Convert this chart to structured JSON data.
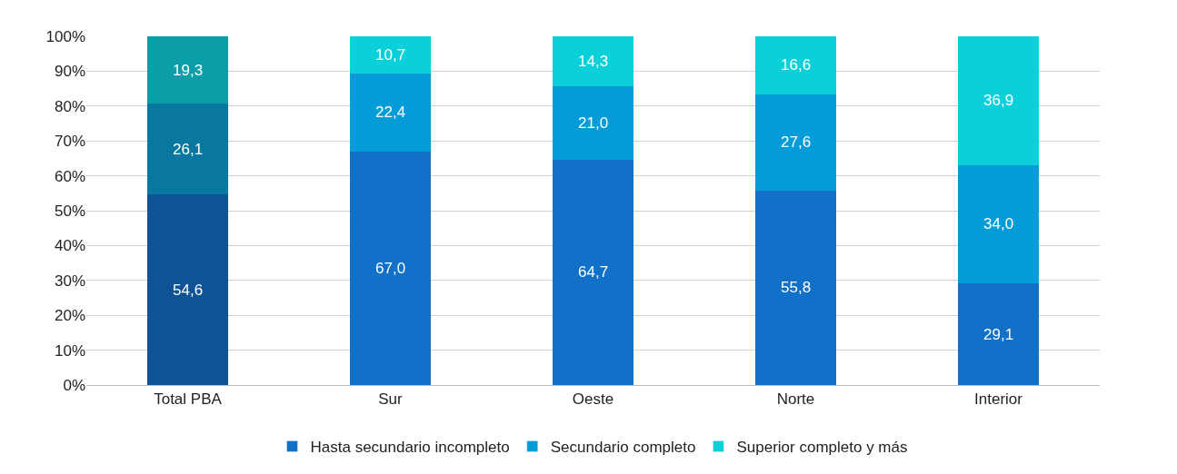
{
  "chart_data": {
    "type": "bar",
    "stacked": true,
    "categories": [
      "Total PBA",
      "Sur",
      "Oeste",
      "Norte",
      "Interior"
    ],
    "series": [
      {
        "name": "Hasta secundario incompleto",
        "color": "#1170c8",
        "colors": [
          "#0e5394",
          "#1170c8",
          "#1170c8",
          "#1170c8",
          "#1170c8"
        ],
        "values": [
          54.6,
          67.0,
          64.7,
          55.8,
          29.1
        ],
        "value_labels": [
          "54,6",
          "67,0",
          "64,7",
          "55,8",
          "29,1"
        ]
      },
      {
        "name": "Secundario completo",
        "color": "#049cd8",
        "colors": [
          "#0878a0",
          "#049cd8",
          "#049cd8",
          "#049cd8",
          "#049cd8"
        ],
        "values": [
          26.1,
          22.4,
          21.0,
          27.6,
          34.0
        ],
        "value_labels": [
          "26,1",
          "22,4",
          "21,0",
          "27,6",
          "34,0"
        ]
      },
      {
        "name": "Superior completo y más",
        "color": "#0bd0da",
        "colors": [
          "#0c9ea8",
          "#0bd0da",
          "#0bd0da",
          "#0bd0da",
          "#0bd0da"
        ],
        "values": [
          19.3,
          10.7,
          14.3,
          16.6,
          36.9
        ],
        "value_labels": [
          "19,3",
          "10,7",
          "14,3",
          "16,6",
          "36,9"
        ]
      }
    ],
    "ylim": [
      0,
      100
    ],
    "yticks": [
      {
        "value": 0,
        "label": "0%"
      },
      {
        "value": 10,
        "label": "10%"
      },
      {
        "value": 20,
        "label": "20%"
      },
      {
        "value": 30,
        "label": "30%"
      },
      {
        "value": 40,
        "label": "40%"
      },
      {
        "value": 50,
        "label": "50%"
      },
      {
        "value": 60,
        "label": "60%"
      },
      {
        "value": 70,
        "label": "70%"
      },
      {
        "value": 80,
        "label": "80%"
      },
      {
        "value": 90,
        "label": "90%"
      },
      {
        "value": 100,
        "label": "100%"
      }
    ],
    "grid": "y",
    "legend": "bottom"
  }
}
